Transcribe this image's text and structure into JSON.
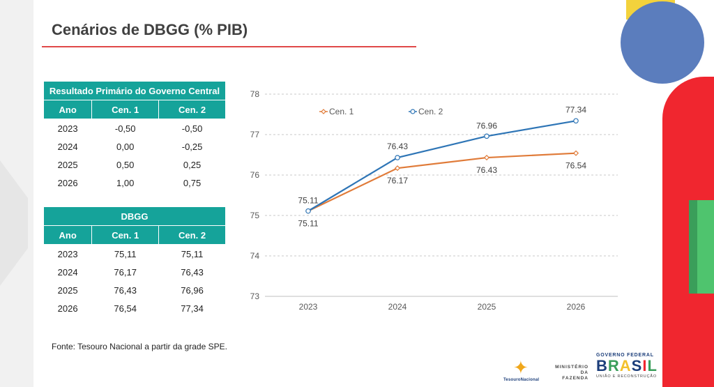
{
  "title": "Cenários de DBGG (% PIB)",
  "table_primario": {
    "caption": "Resultado Primário do Governo Central",
    "headers": [
      "Ano",
      "Cen. 1",
      "Cen. 2"
    ],
    "rows": [
      [
        "2023",
        "-0,50",
        "-0,50"
      ],
      [
        "2024",
        "0,00",
        "-0,25"
      ],
      [
        "2025",
        "0,50",
        "0,25"
      ],
      [
        "2026",
        "1,00",
        "0,75"
      ]
    ]
  },
  "table_dbgg": {
    "caption": "DBGG",
    "headers": [
      "Ano",
      "Cen. 1",
      "Cen. 2"
    ],
    "rows": [
      [
        "2023",
        "75,11",
        "75,11"
      ],
      [
        "2024",
        "76,17",
        "76,43"
      ],
      [
        "2025",
        "76,43",
        "76,96"
      ],
      [
        "2026",
        "76,54",
        "77,34"
      ]
    ]
  },
  "chart_data": {
    "type": "line",
    "title": "",
    "xlabel": "",
    "ylabel": "",
    "categories": [
      "2023",
      "2024",
      "2025",
      "2026"
    ],
    "ylim": [
      73,
      78
    ],
    "yticks": [
      73,
      74,
      75,
      76,
      77,
      78
    ],
    "grid": true,
    "legend_position": "top",
    "series": [
      {
        "name": "Cen. 1",
        "color": "#e07b39",
        "values": [
          75.11,
          76.17,
          76.43,
          76.54
        ],
        "labels": [
          "75.11",
          "76.17",
          "76.43",
          "76.54"
        ]
      },
      {
        "name": "Cen. 2",
        "color": "#2e75b6",
        "values": [
          75.11,
          76.43,
          76.96,
          77.34
        ],
        "labels": [
          "75.11",
          "76.43",
          "76.96",
          "77.34"
        ]
      }
    ]
  },
  "source": "Fonte: Tesouro Nacional a partir da grade SPE.",
  "logos": {
    "tesouro": "TesouroNacional",
    "ministerio_line1": "MINISTÉRIO DA",
    "ministerio_line2": "FAZENDA",
    "governo": "GOVERNO FEDERAL",
    "brasil_letters": [
      "B",
      "R",
      "A",
      "S",
      "I",
      "L"
    ],
    "uniao": "UNIÃO E RECONSTRUÇÃO"
  },
  "colors": {
    "accent_teal": "#15a39a",
    "title_rule": "#e04848"
  }
}
